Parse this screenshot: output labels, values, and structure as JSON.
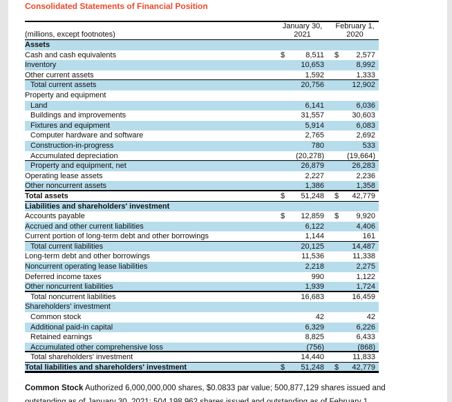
{
  "page": {
    "title": "Consolidated Statements of Financial Position",
    "colors": {
      "title_accent": "#E8492D",
      "row_band": "#B7DDEC",
      "page_edge": "#E6E6E6",
      "rule": "#000000"
    }
  },
  "table": {
    "unit_note": "(millions, except footnotes)",
    "col1": {
      "line1": "January 30,",
      "line2": "2021"
    },
    "col2": {
      "line1": "February 1,",
      "line2": "2020"
    },
    "rows": [
      {
        "label": "Assets",
        "blue": true,
        "bold": true,
        "dollar": false,
        "v1": "",
        "v2": "",
        "indent": false,
        "border": ""
      },
      {
        "label": "Cash and cash equivalents",
        "blue": false,
        "bold": false,
        "dollar": true,
        "v1": "8,511",
        "v2": "2,577",
        "indent": false,
        "border": ""
      },
      {
        "label": "Inventory",
        "blue": true,
        "bold": false,
        "dollar": false,
        "v1": "10,653",
        "v2": "8,992",
        "indent": false,
        "border": ""
      },
      {
        "label": "Other current assets",
        "blue": false,
        "bold": false,
        "dollar": false,
        "v1": "1,592",
        "v2": "1,333",
        "indent": false,
        "border": "thin"
      },
      {
        "label": "Total current assets",
        "blue": true,
        "bold": false,
        "dollar": false,
        "v1": "20,756",
        "v2": "12,902",
        "indent": true,
        "border": ""
      },
      {
        "label": "Property and equipment",
        "blue": false,
        "bold": false,
        "dollar": false,
        "v1": "",
        "v2": "",
        "indent": false,
        "border": ""
      },
      {
        "label": "Land",
        "blue": true,
        "bold": false,
        "dollar": false,
        "v1": "6,141",
        "v2": "6,036",
        "indent": true,
        "border": ""
      },
      {
        "label": "Buildings and improvements",
        "blue": false,
        "bold": false,
        "dollar": false,
        "v1": "31,557",
        "v2": "30,603",
        "indent": true,
        "border": ""
      },
      {
        "label": "Fixtures and equipment",
        "blue": true,
        "bold": false,
        "dollar": false,
        "v1": "5,914",
        "v2": "6,083",
        "indent": true,
        "border": ""
      },
      {
        "label": "Computer hardware and software",
        "blue": false,
        "bold": false,
        "dollar": false,
        "v1": "2,765",
        "v2": "2,692",
        "indent": true,
        "border": ""
      },
      {
        "label": "Construction-in-progress",
        "blue": true,
        "bold": false,
        "dollar": false,
        "v1": "780",
        "v2": "533",
        "indent": true,
        "border": ""
      },
      {
        "label": "Accumulated depreciation",
        "blue": false,
        "bold": false,
        "dollar": false,
        "v1": "(20,278)",
        "v2": "(19,664)",
        "indent": true,
        "border": "thin"
      },
      {
        "label": "Property and equipment, net",
        "blue": true,
        "bold": false,
        "dollar": false,
        "v1": "26,879",
        "v2": "26,283",
        "indent": true,
        "border": ""
      },
      {
        "label": "Operating lease assets",
        "blue": false,
        "bold": false,
        "dollar": false,
        "v1": "2,227",
        "v2": "2,236",
        "indent": false,
        "border": ""
      },
      {
        "label": "Other noncurrent assets",
        "blue": true,
        "bold": false,
        "dollar": false,
        "v1": "1,386",
        "v2": "1,358",
        "indent": false,
        "border": "med"
      },
      {
        "label": "Total assets",
        "blue": false,
        "bold": true,
        "dollar": true,
        "v1": "51,248",
        "v2": "42,779",
        "indent": false,
        "border": "thin"
      },
      {
        "label": "Liabilities and shareholders' investment",
        "blue": true,
        "bold": true,
        "dollar": false,
        "v1": "",
        "v2": "",
        "indent": false,
        "border": ""
      },
      {
        "label": "Accounts payable",
        "blue": false,
        "bold": false,
        "dollar": true,
        "v1": "12,859",
        "v2": "9,920",
        "indent": false,
        "border": ""
      },
      {
        "label": "Accrued and other current liabilities",
        "blue": true,
        "bold": false,
        "dollar": false,
        "v1": "6,122",
        "v2": "4,406",
        "indent": false,
        "border": ""
      },
      {
        "label": "Current portion of long-term debt and other borrowings",
        "blue": false,
        "bold": false,
        "dollar": false,
        "v1": "1,144",
        "v2": "161",
        "indent": false,
        "border": "thin"
      },
      {
        "label": "Total current liabilities",
        "blue": true,
        "bold": false,
        "dollar": false,
        "v1": "20,125",
        "v2": "14,487",
        "indent": true,
        "border": ""
      },
      {
        "label": "Long-term debt and other borrowings",
        "blue": false,
        "bold": false,
        "dollar": false,
        "v1": "11,536",
        "v2": "11,338",
        "indent": false,
        "border": ""
      },
      {
        "label": "Noncurrent operating lease liabilities",
        "blue": true,
        "bold": false,
        "dollar": false,
        "v1": "2,218",
        "v2": "2,275",
        "indent": false,
        "border": ""
      },
      {
        "label": "Deferred income taxes",
        "blue": false,
        "bold": false,
        "dollar": false,
        "v1": "990",
        "v2": "1,122",
        "indent": false,
        "border": ""
      },
      {
        "label": "Other noncurrent liabilities",
        "blue": true,
        "bold": false,
        "dollar": false,
        "v1": "1,939",
        "v2": "1,724",
        "indent": false,
        "border": "med"
      },
      {
        "label": "Total noncurrent liabilities",
        "blue": false,
        "bold": false,
        "dollar": false,
        "v1": "16,683",
        "v2": "16,459",
        "indent": true,
        "border": ""
      },
      {
        "label": "Shareholders' investment",
        "blue": true,
        "bold": false,
        "dollar": false,
        "v1": "",
        "v2": "",
        "indent": false,
        "border": ""
      },
      {
        "label": "Common stock",
        "blue": false,
        "bold": false,
        "dollar": false,
        "v1": "42",
        "v2": "42",
        "indent": true,
        "border": ""
      },
      {
        "label": "Additional paid-in capital",
        "blue": true,
        "bold": false,
        "dollar": false,
        "v1": "6,329",
        "v2": "6,226",
        "indent": true,
        "border": ""
      },
      {
        "label": "Retained earnings",
        "blue": false,
        "bold": false,
        "dollar": false,
        "v1": "8,825",
        "v2": "6,433",
        "indent": true,
        "border": ""
      },
      {
        "label": "Accumulated other comprehensive loss",
        "blue": true,
        "bold": false,
        "dollar": false,
        "v1": "(756)",
        "v2": "(868)",
        "indent": true,
        "border": "med"
      },
      {
        "label": "Total shareholders' investment",
        "blue": false,
        "bold": false,
        "dollar": false,
        "v1": "14,440",
        "v2": "11,833",
        "indent": true,
        "border": "thin"
      },
      {
        "label": "Total liabilities and shareholders' investment",
        "blue": true,
        "bold": true,
        "dollar": true,
        "v1": "51,248",
        "v2": "42,779",
        "indent": false,
        "border": "thick"
      }
    ]
  },
  "footnote": {
    "term": "Common Stock",
    "line1": " Authorized 6,000,000,000 shares, $0.0833 par value; 500,877,129 shares issued and",
    "line2": "outstanding as of January 30, 2021; 504,198,962 shares issued and outstanding as of February 1,"
  }
}
